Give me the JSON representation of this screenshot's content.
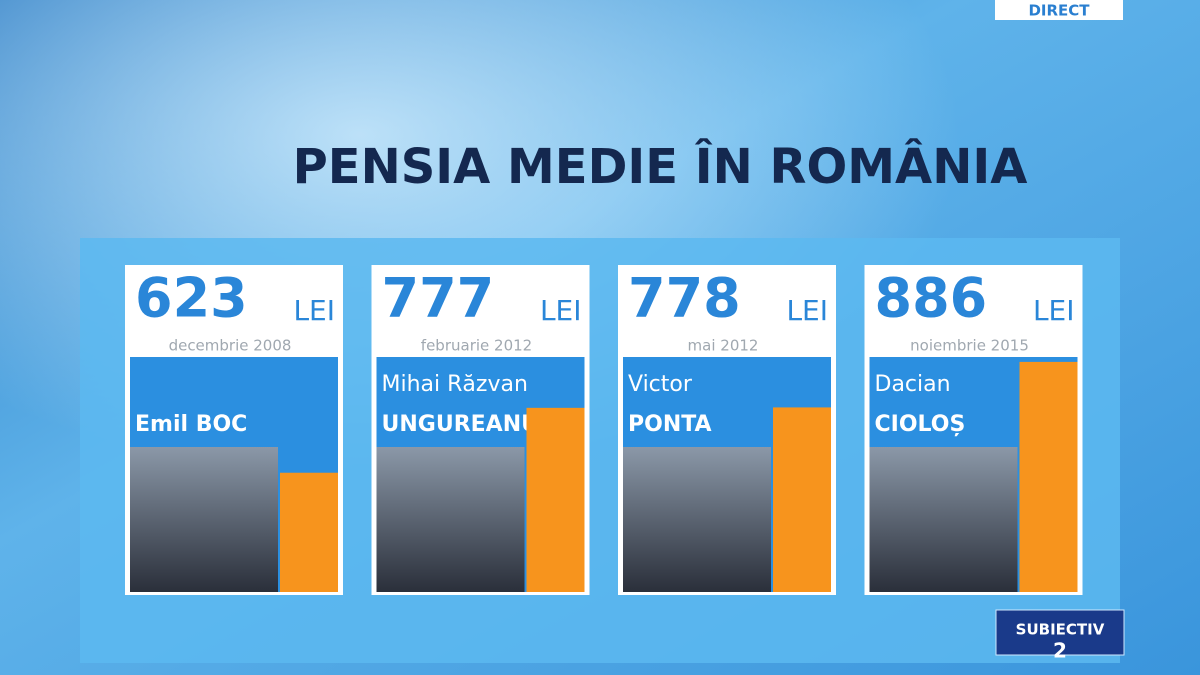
{
  "chart_data": {
    "type": "bar",
    "title": "PENSIA MEDIE ÎN ROMÂNIA",
    "unit": "LEI",
    "categories": [
      "decembrie 2008",
      "februarie 2012",
      "mai 2012",
      "noiembrie 2015"
    ],
    "names": [
      [
        "Emil BOC"
      ],
      [
        "Mihai Răzvan",
        "UNGUREANU"
      ],
      [
        "Victor",
        "PONTA"
      ],
      [
        "Dacian",
        "CIOLOȘ"
      ]
    ],
    "values": [
      623,
      777,
      778,
      886
    ],
    "color": "#f7941d",
    "ylim": [
      340,
      900
    ]
  },
  "overlay": {
    "live": "DIRECT",
    "logo": "SUBIECTIV",
    "logo_number": "2"
  }
}
